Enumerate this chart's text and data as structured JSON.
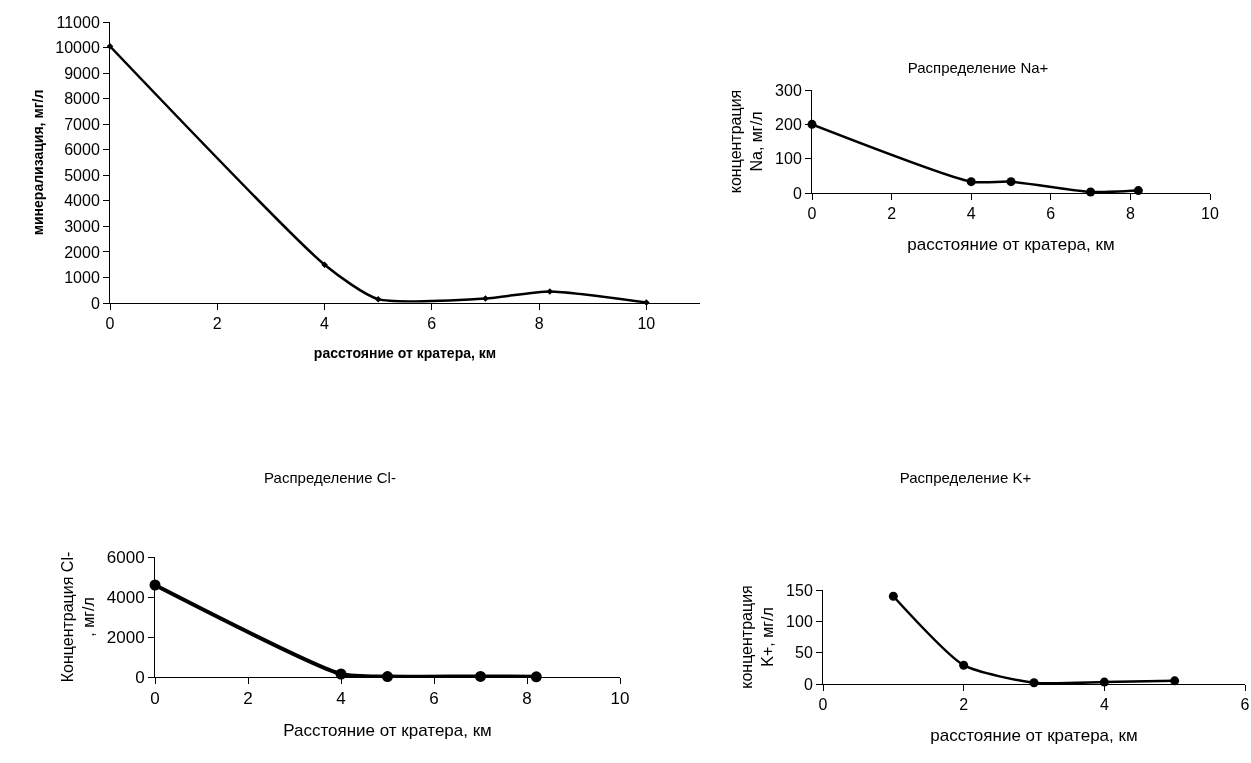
{
  "chart_data": [
    {
      "type": "line",
      "xlabel": "расстояние от кратера, км",
      "ylabel": "минерализация, мг/л",
      "x": [
        0,
        4,
        5,
        7,
        8.2,
        10
      ],
      "values": [
        10050,
        1500,
        150,
        180,
        450,
        20
      ],
      "color": "#000000",
      "marker": "diamond",
      "xlim": [
        0,
        11
      ],
      "xticks": [
        0,
        2,
        4,
        6,
        8,
        10
      ],
      "ylim": [
        0,
        11000
      ],
      "yticks": [
        0,
        1000,
        2000,
        3000,
        4000,
        5000,
        6000,
        7000,
        8000,
        9000,
        10000,
        11000
      ],
      "grid": false,
      "legend": false
    },
    {
      "type": "line",
      "title": "Распределение Na+",
      "xlabel": "расстояние от кратера, км",
      "ylabel": "концентрация\nNa, мг/л",
      "x": [
        0,
        4,
        5,
        7,
        8.2
      ],
      "values": [
        200,
        33,
        33,
        3,
        7
      ],
      "color": "#000000",
      "marker": "circle",
      "xlim": [
        0,
        10
      ],
      "xticks": [
        0,
        2,
        4,
        6,
        8,
        10
      ],
      "ylim": [
        0,
        300
      ],
      "yticks": [
        0,
        100,
        200,
        300
      ],
      "grid": false,
      "legend": false
    },
    {
      "type": "line",
      "title": "Распределение Cl-",
      "xlabel": "Расстояние от кратера, км",
      "ylabel": "Концентрация Cl-\n, мг/л",
      "x": [
        0,
        4,
        5,
        7,
        8.2
      ],
      "values": [
        4600,
        150,
        20,
        30,
        10
      ],
      "color": "#000000",
      "marker": "circle",
      "xlim": [
        0,
        10
      ],
      "xticks": [
        0,
        2,
        4,
        6,
        8,
        10
      ],
      "ylim": [
        0,
        6000
      ],
      "yticks": [
        0,
        2000,
        4000,
        6000
      ],
      "grid": false,
      "legend": false
    },
    {
      "type": "line",
      "title": "Распределение K+",
      "xlabel": "расстояние от кратера, км",
      "ylabel": "концентрация\nK+, мг/л",
      "x": [
        1,
        2,
        3,
        4,
        5
      ],
      "values": [
        140,
        30,
        2,
        3,
        5
      ],
      "color": "#000000",
      "marker": "circle",
      "xlim": [
        0,
        6
      ],
      "xticks": [
        0,
        2,
        4,
        6
      ],
      "ylim": [
        0,
        150
      ],
      "yticks": [
        0,
        50,
        100,
        150
      ],
      "grid": false,
      "legend": false
    }
  ]
}
